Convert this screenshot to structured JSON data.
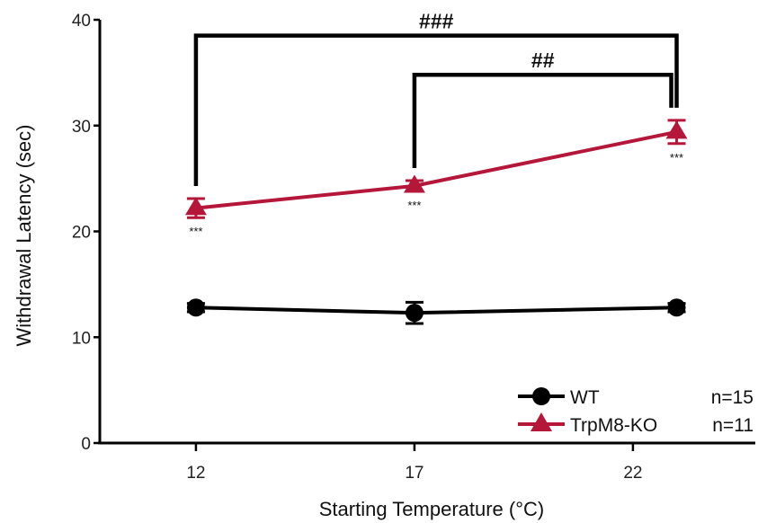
{
  "chart_data": {
    "type": "line",
    "xlabel": "Starting Temperature (°C)",
    "ylabel": "Withdrawal Latency (sec)",
    "ylim": [
      0,
      40
    ],
    "xlim": [
      9.8,
      24.8
    ],
    "x_ticks": [
      12,
      17,
      22
    ],
    "y_ticks": [
      0,
      10,
      20,
      30,
      40
    ],
    "x": [
      12,
      17,
      23
    ],
    "series": [
      {
        "name": "WT",
        "n_label": "n=15",
        "values": [
          12.8,
          12.3,
          12.8
        ],
        "errors": [
          0.4,
          1.0,
          0.4
        ],
        "color": "#000000",
        "marker": "circle"
      },
      {
        "name": "TrpM8-KO",
        "n_label": "n=11",
        "values": [
          22.2,
          24.3,
          29.4
        ],
        "errors": [
          0.9,
          0.5,
          1.1
        ],
        "color": "#b5173a",
        "marker": "triangle"
      }
    ],
    "point_annotations": [
      "***",
      "***",
      "***"
    ],
    "brackets": [
      {
        "from": 12,
        "to": 23,
        "label": "###",
        "height": 38.5
      },
      {
        "from": 17,
        "to": 23,
        "label": "##",
        "height": 34.8
      }
    ],
    "legend_position": "bottom-right",
    "grid": false
  }
}
